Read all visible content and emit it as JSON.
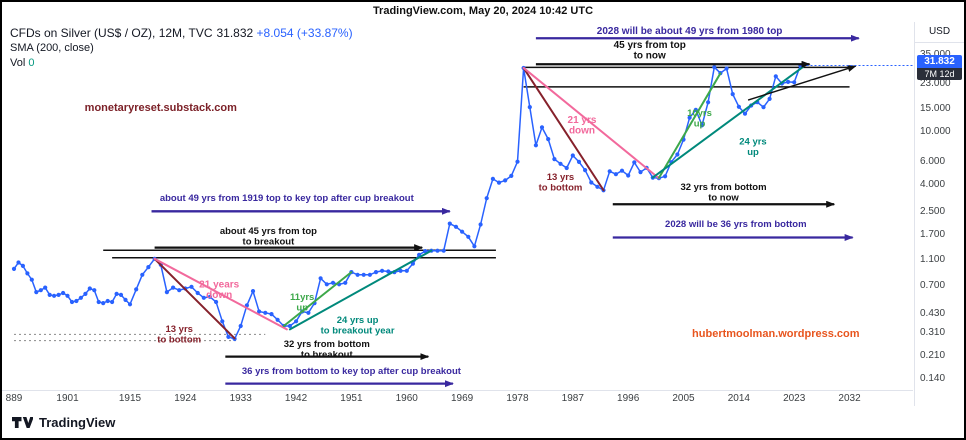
{
  "header": {
    "title": "TradingView.com, May 20, 2024 10:42 UTC"
  },
  "legend": {
    "symbol": "CFDs on Silver (US$ / OZ), 12M, TVC",
    "price": "31.832",
    "change": "+8.054 (+33.87%)",
    "sma": "SMA (200, close)",
    "vol_label": "Vol",
    "vol_value": "0"
  },
  "price_axis": {
    "currency": "USD",
    "badge": {
      "price": "31.832",
      "countdown": "7M 12d"
    },
    "labels": [
      {
        "text": "35.000",
        "value": 35,
        "dy": -5
      },
      {
        "text": "23.000",
        "value": 23
      },
      {
        "text": "15.000",
        "value": 15
      },
      {
        "text": "10.000",
        "value": 10
      },
      {
        "text": "6.000",
        "value": 6
      },
      {
        "text": "4.000",
        "value": 4
      },
      {
        "text": "2.500",
        "value": 2.5
      },
      {
        "text": "1.700",
        "value": 1.7
      },
      {
        "text": "1.100",
        "value": 1.1
      },
      {
        "text": "0.700",
        "value": 0.7
      },
      {
        "text": "0.430",
        "value": 0.43
      },
      {
        "text": "0.310",
        "value": 0.31
      },
      {
        "text": "0.210",
        "value": 0.21
      },
      {
        "text": "0.140",
        "value": 0.14
      }
    ]
  },
  "time_axis": {
    "labels": [
      {
        "text": "889",
        "year": 1889
      },
      {
        "text": "1901",
        "year": 1901
      },
      {
        "text": "1915",
        "year": 1915
      },
      {
        "text": "1924",
        "year": 1924
      },
      {
        "text": "1933",
        "year": 1933
      },
      {
        "text": "1942",
        "year": 1942
      },
      {
        "text": "1951",
        "year": 1951
      },
      {
        "text": "1960",
        "year": 1960
      },
      {
        "text": "1969",
        "year": 1969
      },
      {
        "text": "1978",
        "year": 1978
      },
      {
        "text": "1987",
        "year": 1987
      },
      {
        "text": "1996",
        "year": 1996
      },
      {
        "text": "2005",
        "year": 2005
      },
      {
        "text": "2014",
        "year": 2014
      },
      {
        "text": "2023",
        "year": 2023
      },
      {
        "text": "2032",
        "year": 2032
      }
    ]
  },
  "footer": {
    "brand": "TradingView"
  },
  "colors": {
    "blue": "#2962FF",
    "purple": "#39289f",
    "black": "#111111",
    "darkred": "#86212b",
    "pink": "#f2699c",
    "green": "#3da84a",
    "teal": "#00897b",
    "maroon": "#7c2128",
    "orange": "#e8551e"
  },
  "chart_data": {
    "type": "line",
    "title": "CFDs on Silver (US$ / OZ), 12M, TVC",
    "scale": "log",
    "unit": "USD",
    "xlim": [
      1889,
      2035
    ],
    "ylim": [
      0.113,
      73
    ],
    "price_line": {
      "value": 31.832
    },
    "points": [
      [
        1889,
        0.94
      ],
      [
        1890,
        1.05
      ],
      [
        1891,
        0.99
      ],
      [
        1892,
        0.87
      ],
      [
        1893,
        0.78
      ],
      [
        1894,
        0.63
      ],
      [
        1895,
        0.65
      ],
      [
        1896,
        0.68
      ],
      [
        1897,
        0.6
      ],
      [
        1898,
        0.59
      ],
      [
        1899,
        0.6
      ],
      [
        1900,
        0.62
      ],
      [
        1901,
        0.59
      ],
      [
        1902,
        0.53
      ],
      [
        1903,
        0.54
      ],
      [
        1904,
        0.57
      ],
      [
        1905,
        0.61
      ],
      [
        1906,
        0.67
      ],
      [
        1907,
        0.65
      ],
      [
        1908,
        0.53
      ],
      [
        1909,
        0.52
      ],
      [
        1910,
        0.54
      ],
      [
        1911,
        0.53
      ],
      [
        1912,
        0.61
      ],
      [
        1913,
        0.6
      ],
      [
        1914,
        0.55
      ],
      [
        1915,
        0.51
      ],
      [
        1916,
        0.66
      ],
      [
        1917,
        0.85
      ],
      [
        1918,
        0.97
      ],
      [
        1919,
        1.12
      ],
      [
        1920,
        1.01
      ],
      [
        1921,
        0.63
      ],
      [
        1922,
        0.68
      ],
      [
        1923,
        0.65
      ],
      [
        1924,
        0.67
      ],
      [
        1925,
        0.69
      ],
      [
        1926,
        0.62
      ],
      [
        1927,
        0.57
      ],
      [
        1928,
        0.58
      ],
      [
        1929,
        0.53
      ],
      [
        1930,
        0.38
      ],
      [
        1931,
        0.29
      ],
      [
        1932,
        0.28
      ],
      [
        1933,
        0.35
      ],
      [
        1934,
        0.5
      ],
      [
        1935,
        0.64
      ],
      [
        1936,
        0.45
      ],
      [
        1937,
        0.44
      ],
      [
        1938,
        0.43
      ],
      [
        1939,
        0.39
      ],
      [
        1940,
        0.35
      ],
      [
        1941,
        0.35
      ],
      [
        1942,
        0.38
      ],
      [
        1943,
        0.45
      ],
      [
        1944,
        0.44
      ],
      [
        1945,
        0.52
      ],
      [
        1946,
        0.8
      ],
      [
        1947,
        0.72
      ],
      [
        1948,
        0.74
      ],
      [
        1949,
        0.72
      ],
      [
        1950,
        0.74
      ],
      [
        1951,
        0.89
      ],
      [
        1952,
        0.85
      ],
      [
        1953,
        0.85
      ],
      [
        1954,
        0.85
      ],
      [
        1955,
        0.89
      ],
      [
        1956,
        0.91
      ],
      [
        1957,
        0.9
      ],
      [
        1958,
        0.89
      ],
      [
        1959,
        0.91
      ],
      [
        1960,
        0.91
      ],
      [
        1961,
        1.03
      ],
      [
        1962,
        1.2
      ],
      [
        1963,
        1.28
      ],
      [
        1964,
        1.29
      ],
      [
        1965,
        1.29
      ],
      [
        1966,
        1.29
      ],
      [
        1967,
        2.06
      ],
      [
        1968,
        1.95
      ],
      [
        1969,
        1.79
      ],
      [
        1970,
        1.64
      ],
      [
        1971,
        1.39
      ],
      [
        1972,
        2.03
      ],
      [
        1973,
        3.2
      ],
      [
        1974,
        4.47
      ],
      [
        1975,
        4.19
      ],
      [
        1976,
        4.35
      ],
      [
        1977,
        4.71
      ],
      [
        1978,
        6.02
      ],
      [
        1979,
        30.5
      ],
      [
        1980,
        15.5
      ],
      [
        1981,
        8.0
      ],
      [
        1982,
        10.9
      ],
      [
        1983,
        8.9
      ],
      [
        1984,
        6.3
      ],
      [
        1985,
        5.8
      ],
      [
        1986,
        5.4
      ],
      [
        1987,
        6.7
      ],
      [
        1988,
        6.0
      ],
      [
        1989,
        5.2
      ],
      [
        1990,
        4.2
      ],
      [
        1991,
        3.9
      ],
      [
        1992,
        3.67
      ],
      [
        1993,
        5.1
      ],
      [
        1994,
        4.85
      ],
      [
        1995,
        5.15
      ],
      [
        1996,
        4.74
      ],
      [
        1997,
        5.95
      ],
      [
        1998,
        5.03
      ],
      [
        1999,
        5.41
      ],
      [
        2000,
        4.57
      ],
      [
        2001,
        4.52
      ],
      [
        2002,
        4.67
      ],
      [
        2003,
        5.97
      ],
      [
        2004,
        6.82
      ],
      [
        2005,
        8.83
      ],
      [
        2006,
        12.9
      ],
      [
        2007,
        14.76
      ],
      [
        2008,
        11.3
      ],
      [
        2009,
        16.82
      ],
      [
        2010,
        30.92
      ],
      [
        2011,
        27.88
      ],
      [
        2012,
        30.23
      ],
      [
        2013,
        19.39
      ],
      [
        2014,
        15.57
      ],
      [
        2015,
        13.82
      ],
      [
        2016,
        15.92
      ],
      [
        2017,
        16.87
      ],
      [
        2018,
        15.47
      ],
      [
        2019,
        17.85
      ],
      [
        2020,
        26.4
      ],
      [
        2021,
        23.31
      ],
      [
        2022,
        23.95
      ],
      [
        2023,
        23.8
      ],
      [
        2024,
        31.83
      ]
    ],
    "annotations": {
      "trendlines": [
        {
          "x1": 1919,
          "p1": 1.12,
          "x2": 1932,
          "p2": 0.283,
          "color": "darkred"
        },
        {
          "x1": 1919,
          "p1": 1.12,
          "x2": 1940.5,
          "p2": 0.33,
          "color": "pink"
        },
        {
          "x1": 1940,
          "p1": 0.35,
          "x2": 1951,
          "p2": 0.89,
          "color": "green"
        },
        {
          "x1": 1941,
          "p1": 0.33,
          "x2": 1964,
          "p2": 1.29,
          "color": "teal"
        },
        {
          "x1": 1979,
          "p1": 30.5,
          "x2": 1992,
          "p2": 3.67,
          "color": "darkred"
        },
        {
          "x1": 1979,
          "p1": 30.5,
          "x2": 2001,
          "p2": 4.52,
          "color": "pink"
        },
        {
          "x1": 2001,
          "p1": 4.55,
          "x2": 2011,
          "p2": 27.8,
          "color": "green"
        },
        {
          "x1": 2000,
          "p1": 4.57,
          "x2": 2024.4,
          "p2": 31.0,
          "color": "teal"
        }
      ],
      "hlines": [
        {
          "x1": 1909,
          "x2": 1974.5,
          "p": 1.3
        },
        {
          "x1": 1911,
          "x2": 1974.5,
          "p": 1.14
        },
        {
          "x1": 1979,
          "x2": 2032,
          "p": 30.8
        },
        {
          "x1": 1979,
          "x2": 2032,
          "p": 22.0
        }
      ],
      "dotted": [
        {
          "x1": 1889,
          "x2": 1937,
          "p": 0.303
        },
        {
          "x1": 1889,
          "x2": 1932.5,
          "p": 0.272
        }
      ],
      "arrows": [
        {
          "x1": 1918.5,
          "p1": 2.55,
          "x2": 1967,
          "p2": 2.55,
          "color": "purple"
        },
        {
          "x1": 1919,
          "p1": 1.36,
          "x2": 1962.5,
          "p2": 1.36,
          "color": "black"
        },
        {
          "x1": 1930.5,
          "p1": 0.206,
          "x2": 1963.5,
          "p2": 0.206,
          "color": "black"
        },
        {
          "x1": 1930.5,
          "p1": 0.129,
          "x2": 1967.5,
          "p2": 0.129,
          "color": "purple"
        },
        {
          "x1": 1981,
          "p1": 51,
          "x2": 2033.5,
          "p2": 51,
          "color": "purple"
        },
        {
          "x1": 1981,
          "p1": 32.5,
          "x2": 2025.5,
          "p2": 32.5,
          "color": "black"
        },
        {
          "x1": 1993.5,
          "p1": 2.88,
          "x2": 2029.5,
          "p2": 2.88,
          "color": "black"
        },
        {
          "x1": 1993.5,
          "p1": 1.62,
          "x2": 2032.5,
          "p2": 1.62,
          "color": "purple"
        },
        {
          "x1": 2015.5,
          "p1": 17.5,
          "x2": 2033,
          "p2": 31.5,
          "color": "black",
          "w": 1.4
        }
      ],
      "labels": [
        {
          "text": "monetaryreset.substack.com",
          "year": 1920,
          "price": 14.5,
          "color": "maroon",
          "size": 11,
          "bold": true
        },
        {
          "text": "2028 will be about 49 yrs  from 1980 top",
          "year": 2006,
          "price": 55,
          "color": "purple",
          "size": 10,
          "bold": true
        },
        {
          "text": "45 yrs from top\nto now",
          "year": 1999.5,
          "price": 43,
          "color": "black",
          "size": 10,
          "bold": true
        },
        {
          "text": "21 yrs\ndown",
          "year": 1988.5,
          "price": 11.8,
          "color": "pink",
          "size": 10,
          "bold": true
        },
        {
          "text": "13 yrs\nto bottom",
          "year": 1985,
          "price": 4.4,
          "color": "darkred",
          "size": 9.5,
          "bold": true
        },
        {
          "text": "10yrs\nup",
          "year": 2007.6,
          "price": 13.3,
          "color": "green",
          "size": 9.5,
          "bold": true
        },
        {
          "text": "24 yrs\nup",
          "year": 2016.3,
          "price": 8.1,
          "color": "teal",
          "size": 9.5,
          "bold": true
        },
        {
          "text": "32 yrs from bottom\nto now",
          "year": 2011.5,
          "price": 3.7,
          "color": "black",
          "size": 9.5,
          "bold": true
        },
        {
          "text": "2028 will be 36 yrs from bottom",
          "year": 2013.5,
          "price": 1.95,
          "color": "purple",
          "size": 9.5,
          "bold": true
        },
        {
          "text": "about 49 yrs from 1919 top to key top after cup breakout",
          "year": 1940.5,
          "price": 3.05,
          "color": "purple",
          "size": 9.5,
          "bold": true
        },
        {
          "text": "about 45 yrs from top\nto breakout",
          "year": 1937.5,
          "price": 1.72,
          "color": "black",
          "size": 9.5,
          "bold": true
        },
        {
          "text": "21 years\ndown",
          "year": 1929.5,
          "price": 0.68,
          "color": "pink",
          "size": 10,
          "bold": true
        },
        {
          "text": "13 yrs\nto bottom",
          "year": 1923,
          "price": 0.315,
          "color": "darkred",
          "size": 9.5,
          "bold": true
        },
        {
          "text": "11yrs\nup",
          "year": 1943,
          "price": 0.55,
          "color": "green",
          "size": 9.5,
          "bold": true
        },
        {
          "text": "24 yrs up\nto breakout year",
          "year": 1952,
          "price": 0.37,
          "color": "teal",
          "size": 9.5,
          "bold": true
        },
        {
          "text": "32 yrs from bottom\nto breakout",
          "year": 1947,
          "price": 0.243,
          "color": "black",
          "size": 9.5,
          "bold": true
        },
        {
          "text": "36 yrs from bottom to key top after cup breakout",
          "year": 1951,
          "price": 0.152,
          "color": "purple",
          "size": 9.5,
          "bold": true
        },
        {
          "text": "hubertmoolman.wordpress.com",
          "year": 2020,
          "price": 0.29,
          "color": "orange",
          "size": 11,
          "bold": true
        }
      ]
    }
  }
}
